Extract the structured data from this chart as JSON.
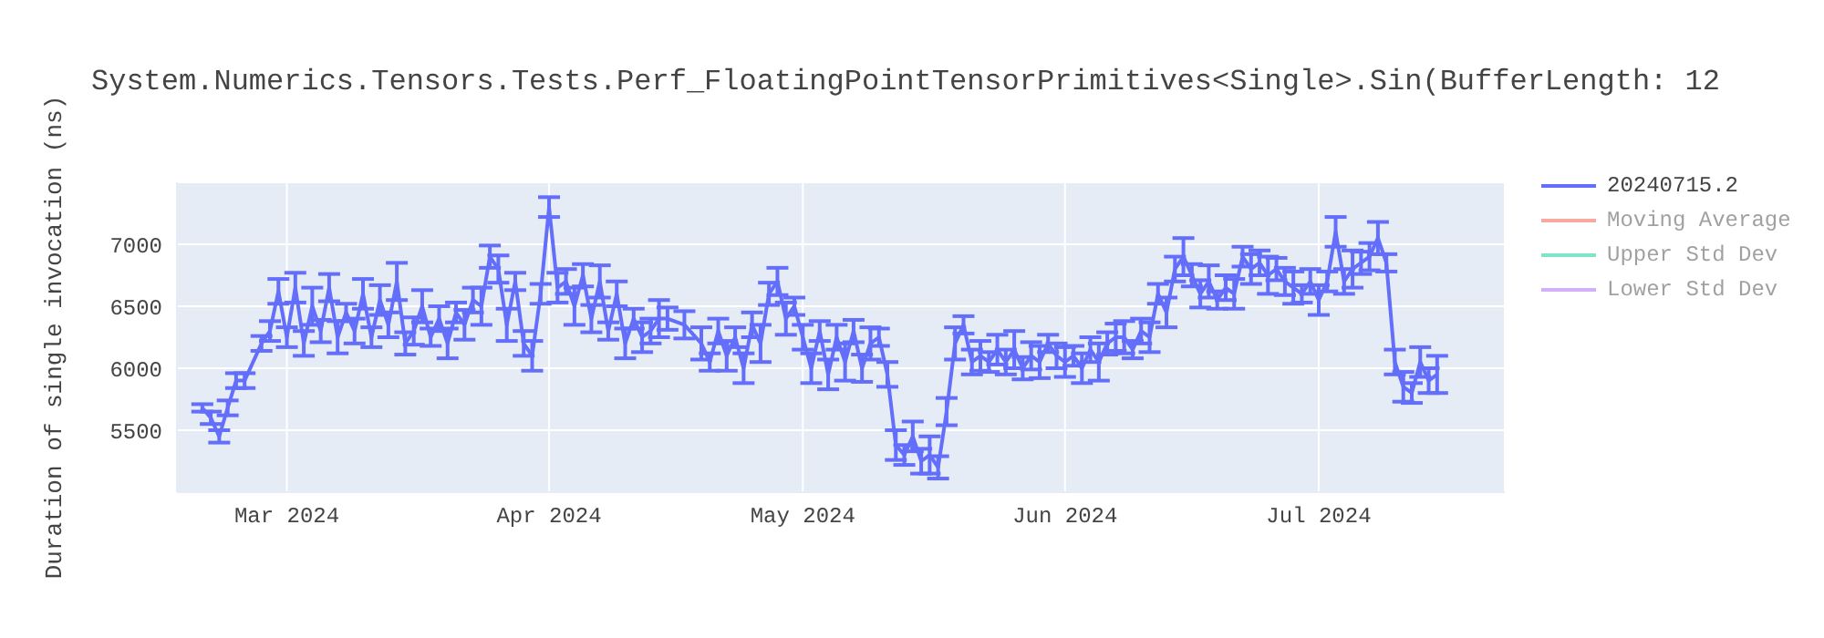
{
  "chart_data": {
    "type": "line",
    "title": "System.Numerics.Tensors.Tests.Perf_FloatingPointTensorPrimitives<Single>.Sin(BufferLength: 12",
    "ylabel": "Duration of single invocation (ns)",
    "x": [
      "2024-02-20",
      "2024-02-21",
      "2024-02-22",
      "2024-02-23",
      "2024-02-24",
      "2024-02-25",
      "2024-02-27",
      "2024-02-28",
      "2024-02-29",
      "2024-03-01",
      "2024-03-02",
      "2024-03-03",
      "2024-03-04",
      "2024-03-05",
      "2024-03-06",
      "2024-03-07",
      "2024-03-08",
      "2024-03-09",
      "2024-03-10",
      "2024-03-11",
      "2024-03-12",
      "2024-03-13",
      "2024-03-14",
      "2024-03-15",
      "2024-03-16",
      "2024-03-17",
      "2024-03-18",
      "2024-03-19",
      "2024-03-20",
      "2024-03-21",
      "2024-03-22",
      "2024-03-23",
      "2024-03-24",
      "2024-03-25",
      "2024-03-26",
      "2024-03-27",
      "2024-03-28",
      "2024-03-29",
      "2024-03-30",
      "2024-03-31",
      "2024-04-01",
      "2024-04-02",
      "2024-04-03",
      "2024-04-04",
      "2024-04-05",
      "2024-04-06",
      "2024-04-07",
      "2024-04-08",
      "2024-04-09",
      "2024-04-10",
      "2024-04-11",
      "2024-04-12",
      "2024-04-13",
      "2024-04-14",
      "2024-04-15",
      "2024-04-17",
      "2024-04-19",
      "2024-04-20",
      "2024-04-21",
      "2024-04-22",
      "2024-04-23",
      "2024-04-24",
      "2024-04-25",
      "2024-04-26",
      "2024-04-27",
      "2024-04-28",
      "2024-04-29",
      "2024-04-30",
      "2024-05-01",
      "2024-05-02",
      "2024-05-03",
      "2024-05-04",
      "2024-05-05",
      "2024-05-06",
      "2024-05-07",
      "2024-05-08",
      "2024-05-09",
      "2024-05-10",
      "2024-05-11",
      "2024-05-12",
      "2024-05-13",
      "2024-05-14",
      "2024-05-15",
      "2024-05-16",
      "2024-05-17",
      "2024-05-18",
      "2024-05-19",
      "2024-05-20",
      "2024-05-21",
      "2024-05-22",
      "2024-05-23",
      "2024-05-24",
      "2024-05-25",
      "2024-05-26",
      "2024-05-27",
      "2024-05-28",
      "2024-05-29",
      "2024-05-30",
      "2024-05-31",
      "2024-06-01",
      "2024-06-02",
      "2024-06-03",
      "2024-06-04",
      "2024-06-05",
      "2024-06-06",
      "2024-06-07",
      "2024-06-08",
      "2024-06-09",
      "2024-06-10",
      "2024-06-11",
      "2024-06-12",
      "2024-06-13",
      "2024-06-14",
      "2024-06-15",
      "2024-06-16",
      "2024-06-17",
      "2024-06-18",
      "2024-06-19",
      "2024-06-20",
      "2024-06-21",
      "2024-06-22",
      "2024-06-23",
      "2024-06-24",
      "2024-06-25",
      "2024-06-26",
      "2024-06-27",
      "2024-06-28",
      "2024-06-29",
      "2024-06-30",
      "2024-07-01",
      "2024-07-02",
      "2024-07-03",
      "2024-07-04",
      "2024-07-05",
      "2024-07-06",
      "2024-07-07",
      "2024-07-08",
      "2024-07-09",
      "2024-07-10",
      "2024-07-11",
      "2024-07-12",
      "2024-07-13",
      "2024-07-14",
      "2024-07-15"
    ],
    "series": [
      {
        "name": "20240715.2",
        "color": "#636efa",
        "values": [
          5680,
          5600,
          5450,
          5680,
          5900,
          5900,
          6200,
          6300,
          6620,
          6250,
          6650,
          6200,
          6500,
          6300,
          6650,
          6250,
          6450,
          6300,
          6600,
          6250,
          6550,
          6350,
          6700,
          6200,
          6300,
          6500,
          6250,
          6400,
          6200,
          6450,
          6350,
          6550,
          6500,
          6900,
          6800,
          6350,
          6700,
          6200,
          6100,
          6600,
          7300,
          6650,
          6700,
          6500,
          6750,
          6400,
          6700,
          6300,
          6600,
          6200,
          6400,
          6250,
          6300,
          6400,
          6400,
          6350,
          6200,
          6050,
          6300,
          6100,
          6250,
          6000,
          6350,
          6200,
          6600,
          6700,
          6400,
          6500,
          6250,
          6000,
          6300,
          5950,
          6250,
          6050,
          6300,
          6000,
          6200,
          6250,
          5950,
          5380,
          5300,
          5450,
          5250,
          5300,
          5200,
          5650,
          6200,
          6350,
          6050,
          6100,
          6050,
          6150,
          6050,
          6150,
          6000,
          6100,
          6050,
          6200,
          6100,
          6050,
          6100,
          6000,
          6150,
          6050,
          6200,
          6250,
          6250,
          6150,
          6300,
          6250,
          6600,
          6450,
          6800,
          6900,
          6750,
          6600,
          6700,
          6550,
          6650,
          6600,
          6900,
          6800,
          6850,
          6750,
          6800,
          6700,
          6650,
          6600,
          6700,
          6550,
          6700,
          7100,
          6700,
          6800,
          6850,
          6900,
          7050,
          6850,
          6050,
          5850,
          5800,
          6050,
          5900,
          5950
        ],
        "errors": [
          30,
          50,
          50,
          60,
          60,
          60,
          60,
          80,
          100,
          80,
          120,
          100,
          150,
          90,
          110,
          130,
          70,
          100,
          120,
          80,
          120,
          100,
          150,
          90,
          110,
          130,
          70,
          100,
          120,
          80,
          120,
          100,
          150,
          90,
          110,
          130,
          70,
          100,
          120,
          80,
          80,
          120,
          100,
          150,
          90,
          110,
          130,
          70,
          100,
          120,
          80,
          120,
          100,
          150,
          90,
          110,
          130,
          70,
          100,
          120,
          80,
          120,
          100,
          150,
          90,
          110,
          130,
          70,
          100,
          120,
          80,
          120,
          100,
          150,
          90,
          110,
          130,
          70,
          100,
          120,
          80,
          120,
          100,
          150,
          90,
          110,
          130,
          70,
          100,
          120,
          80,
          120,
          100,
          150,
          90,
          110,
          130,
          70,
          100,
          120,
          80,
          120,
          100,
          150,
          90,
          110,
          130,
          70,
          100,
          120,
          80,
          120,
          100,
          150,
          90,
          110,
          130,
          70,
          100,
          120,
          80,
          120,
          100,
          150,
          90,
          110,
          130,
          70,
          100,
          120,
          80,
          120,
          100,
          150,
          90,
          110,
          130,
          70,
          100,
          120,
          80,
          120,
          100,
          150
        ]
      },
      {
        "name": "Moving Average",
        "color": "#ef553b",
        "values": [
          null,
          null,
          null,
          null,
          null,
          null,
          null,
          null,
          null,
          null,
          null,
          null,
          null,
          null,
          null,
          null,
          null,
          null,
          null,
          null,
          null,
          null,
          null,
          null,
          null,
          null,
          null,
          null,
          null,
          null,
          null,
          null,
          null,
          null,
          null,
          null,
          null,
          null,
          null,
          null,
          null,
          null,
          null,
          null,
          null,
          null,
          null,
          null,
          null,
          null,
          null,
          null,
          null,
          null,
          null,
          null,
          null,
          null,
          null,
          null,
          null,
          null,
          null,
          null,
          null,
          null,
          null,
          null,
          null,
          null,
          null,
          null,
          null,
          null,
          null,
          null,
          null,
          null,
          null,
          null,
          null,
          null,
          null,
          null,
          null,
          null,
          null,
          null,
          null,
          null,
          null,
          null,
          null,
          null,
          null,
          null,
          null,
          null,
          null,
          null,
          null,
          null,
          null,
          null,
          null,
          null,
          null,
          null,
          null,
          null,
          null,
          null,
          null,
          null,
          null,
          null,
          null,
          null,
          null,
          null,
          null,
          null,
          null,
          null,
          null,
          null,
          null,
          null,
          null,
          null,
          null,
          null,
          null,
          null,
          null,
          null,
          null,
          null,
          null,
          null,
          null,
          null,
          null,
          null
        ]
      },
      {
        "name": "Upper Std Dev",
        "color": "#00cc96",
        "values": [
          null,
          null,
          null,
          null,
          null,
          null,
          null,
          null,
          null,
          null,
          null,
          null,
          null,
          null,
          null,
          null,
          null,
          null,
          null,
          null,
          null,
          null,
          null,
          null,
          null,
          null,
          null,
          null,
          null,
          null,
          null,
          null,
          null,
          null,
          null,
          null,
          null,
          null,
          null,
          null,
          null,
          null,
          null,
          null,
          null,
          null,
          null,
          null,
          null,
          null,
          null,
          null,
          null,
          null,
          null,
          null,
          null,
          null,
          null,
          null,
          null,
          null,
          null,
          null,
          null,
          null,
          null,
          null,
          null,
          null,
          null,
          null,
          null,
          null,
          null,
          null,
          null,
          null,
          null,
          null,
          null,
          null,
          null,
          null,
          null,
          null,
          null,
          null,
          null,
          null,
          null,
          null,
          null,
          null,
          null,
          null,
          null,
          null,
          null,
          null,
          null,
          null,
          null,
          null,
          null,
          null,
          null,
          null,
          null,
          null,
          null,
          null,
          null,
          null,
          null,
          null,
          null,
          null,
          null,
          null,
          null,
          null,
          null,
          null,
          null,
          null,
          null,
          null,
          null,
          null,
          null,
          null,
          null,
          null,
          null,
          null,
          null,
          null,
          null,
          null,
          null,
          null,
          null,
          null
        ]
      },
      {
        "name": "Lower Std Dev",
        "color": "#ab63fa",
        "values": [
          null,
          null,
          null,
          null,
          null,
          null,
          null,
          null,
          null,
          null,
          null,
          null,
          null,
          null,
          null,
          null,
          null,
          null,
          null,
          null,
          null,
          null,
          null,
          null,
          null,
          null,
          null,
          null,
          null,
          null,
          null,
          null,
          null,
          null,
          null,
          null,
          null,
          null,
          null,
          null,
          null,
          null,
          null,
          null,
          null,
          null,
          null,
          null,
          null,
          null,
          null,
          null,
          null,
          null,
          null,
          null,
          null,
          null,
          null,
          null,
          null,
          null,
          null,
          null,
          null,
          null,
          null,
          null,
          null,
          null,
          null,
          null,
          null,
          null,
          null,
          null,
          null,
          null,
          null,
          null,
          null,
          null,
          null,
          null,
          null,
          null,
          null,
          null,
          null,
          null,
          null,
          null,
          null,
          null,
          null,
          null,
          null,
          null,
          null,
          null,
          null,
          null,
          null,
          null,
          null,
          null,
          null,
          null,
          null,
          null,
          null,
          null,
          null,
          null,
          null,
          null,
          null,
          null,
          null,
          null,
          null,
          null,
          null,
          null,
          null,
          null,
          null,
          null,
          null,
          null,
          null,
          null,
          null,
          null,
          null,
          null,
          null,
          null,
          null,
          null,
          null,
          null,
          null,
          null
        ]
      }
    ],
    "xlim": [
      "2024-02-17",
      "2024-07-23"
    ],
    "xticks": [
      {
        "value": "2024-03-01",
        "label": "Mar 2024"
      },
      {
        "value": "2024-04-01",
        "label": "Apr 2024"
      },
      {
        "value": "2024-05-01",
        "label": "May 2024"
      },
      {
        "value": "2024-06-01",
        "label": "Jun 2024"
      },
      {
        "value": "2024-07-01",
        "label": "Jul 2024"
      }
    ],
    "ylim": [
      5000,
      7500
    ],
    "yticks": [
      5500,
      6000,
      6500,
      7000
    ],
    "grid": true,
    "legend": "top right",
    "marker": "none",
    "line_style": "solid"
  }
}
